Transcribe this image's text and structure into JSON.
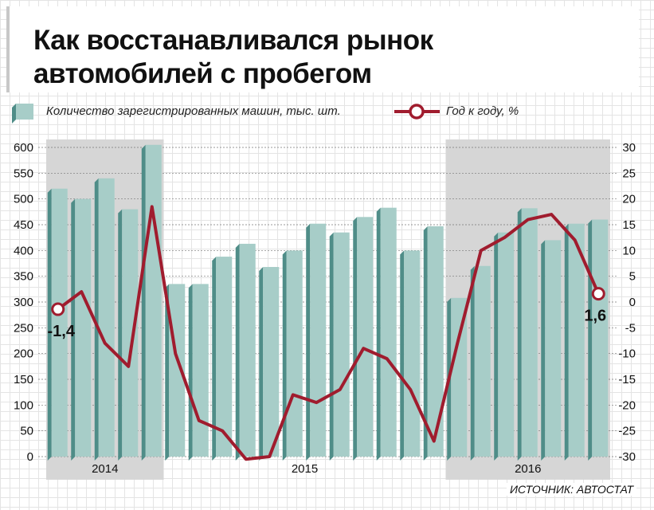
{
  "title_line1": "Как восстанавливался рынок",
  "title_line2": "автомобилей с пробегом",
  "source": "ИСТОЧНИК: АВТОСТАТ",
  "colors": {
    "bar_face": "#a7cdc8",
    "bar_side": "#4f8d88",
    "line": "#a01c2e",
    "shade": "#d6d6d6"
  },
  "chart_data": {
    "type": "bar+line",
    "year_labels": [
      "2014",
      "2015",
      "2016"
    ],
    "series": [
      {
        "name": "Количество зарегистрированных машин, тыс. шт.",
        "axis": "left",
        "values": [
          520,
          500,
          540,
          480,
          605,
          335,
          335,
          388,
          413,
          368,
          400,
          452,
          435,
          465,
          483,
          400,
          447,
          308,
          370,
          435,
          482,
          420,
          452,
          460
        ]
      },
      {
        "name": "Год к году, %",
        "axis": "right",
        "values": [
          -1.4,
          2,
          -8,
          -12.5,
          18.5,
          -10,
          -23,
          -25,
          -30.5,
          -30,
          -18,
          -19.5,
          -17,
          -9,
          -11,
          -17,
          -27,
          -8,
          10,
          12.5,
          16,
          17,
          12,
          1.6
        ]
      }
    ],
    "left_axis": {
      "ylim": [
        0,
        600
      ],
      "ticks": [
        "0",
        "50",
        "100",
        "150",
        "200",
        "250",
        "300",
        "350",
        "400",
        "450",
        "500",
        "550",
        "600"
      ]
    },
    "right_axis": {
      "ylim": [
        -30,
        30
      ],
      "ticks": [
        "-30",
        "-25",
        "-20",
        "-15",
        "-10",
        "-5",
        "0",
        "5",
        "10",
        "15",
        "20",
        "25",
        "30"
      ]
    },
    "annotations": [
      {
        "index": 0,
        "text": "-1,4"
      },
      {
        "index": 23,
        "text": "1,6"
      }
    ],
    "shaded_years": [
      "2014",
      "2016"
    ],
    "grid": true,
    "legend_position": "top"
  }
}
